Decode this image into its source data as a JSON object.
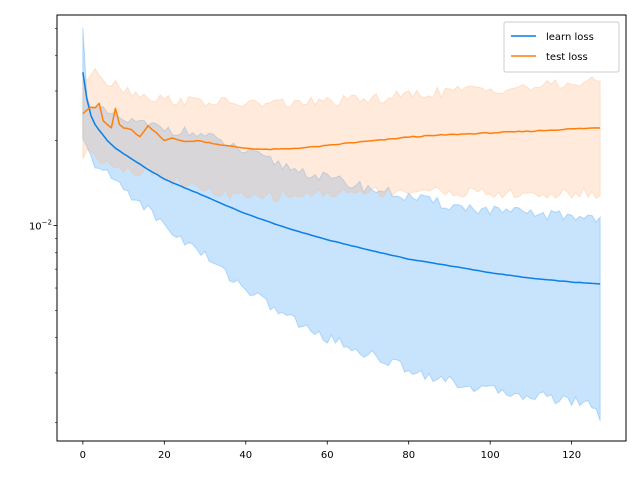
{
  "chart_data": {
    "type": "line",
    "title": "",
    "xlabel": "",
    "ylabel": "",
    "xlim": [
      -6.35,
      133.35
    ],
    "ylim": [
      0.00172,
      0.0558
    ],
    "yscale": "log",
    "grid": false,
    "legend_position": "top-right",
    "x_ticks": [
      0,
      20,
      40,
      60,
      80,
      100,
      120
    ],
    "y_major_ticks": [
      {
        "value": 0.01,
        "base": "10",
        "exponent": "−2"
      }
    ],
    "y_minor_ticks": [
      0.002,
      0.003,
      0.004,
      0.005,
      0.006,
      0.007,
      0.008,
      0.009,
      0.02,
      0.03,
      0.04,
      0.05
    ],
    "x_start": 0,
    "x_end": 127,
    "series": [
      {
        "name": "learn loss",
        "color": "#1f77b4",
        "line_color": "#0a7fe8",
        "band_color": "#4aa3f5",
        "mean_anchors": [
          [
            0,
            0.035
          ],
          [
            1,
            0.028
          ],
          [
            2,
            0.0245
          ],
          [
            3,
            0.0228
          ],
          [
            4,
            0.0218
          ],
          [
            6,
            0.02
          ],
          [
            8,
            0.0188
          ],
          [
            10,
            0.018
          ],
          [
            12,
            0.0172
          ],
          [
            14,
            0.0165
          ],
          [
            16,
            0.0158
          ],
          [
            18,
            0.0152
          ],
          [
            20,
            0.0146
          ],
          [
            25,
            0.0136
          ],
          [
            30,
            0.0127
          ],
          [
            35,
            0.0118
          ],
          [
            40,
            0.011
          ],
          [
            50,
            0.0098
          ],
          [
            60,
            0.0089
          ],
          [
            70,
            0.0082
          ],
          [
            80,
            0.0076
          ],
          [
            90,
            0.0072
          ],
          [
            100,
            0.0068
          ],
          [
            110,
            0.0065
          ],
          [
            120,
            0.0063
          ],
          [
            127,
            0.0062
          ]
        ],
        "upper_anchors": [
          [
            0,
            0.049
          ],
          [
            1,
            0.03
          ],
          [
            2,
            0.0265
          ],
          [
            3,
            0.0258
          ],
          [
            4,
            0.0255
          ],
          [
            6,
            0.025
          ],
          [
            8,
            0.0242
          ],
          [
            10,
            0.0236
          ],
          [
            15,
            0.0228
          ],
          [
            20,
            0.0222
          ],
          [
            30,
            0.0208
          ],
          [
            40,
            0.0182
          ],
          [
            50,
            0.0162
          ],
          [
            60,
            0.0147
          ],
          [
            70,
            0.0136
          ],
          [
            80,
            0.0126
          ],
          [
            90,
            0.0118
          ],
          [
            100,
            0.0113
          ],
          [
            110,
            0.011
          ],
          [
            120,
            0.0108
          ],
          [
            127,
            0.0107
          ]
        ],
        "lower_anchors": [
          [
            0,
            0.02
          ],
          [
            2,
            0.0172
          ],
          [
            4,
            0.016
          ],
          [
            8,
            0.0144
          ],
          [
            12,
            0.0128
          ],
          [
            16,
            0.0114
          ],
          [
            20,
            0.01
          ],
          [
            25,
            0.0088
          ],
          [
            30,
            0.0078
          ],
          [
            35,
            0.0068
          ],
          [
            40,
            0.006
          ],
          [
            45,
            0.0053
          ],
          [
            50,
            0.0048
          ],
          [
            55,
            0.0043
          ],
          [
            60,
            0.004
          ],
          [
            70,
            0.0035
          ],
          [
            80,
            0.0031
          ],
          [
            90,
            0.0028
          ],
          [
            100,
            0.0026
          ],
          [
            110,
            0.0025
          ],
          [
            120,
            0.0024
          ],
          [
            126,
            0.0023
          ],
          [
            127,
            0.002
          ]
        ]
      },
      {
        "name": "test loss",
        "color": "#ff7f0e",
        "line_color": "#ff7f0e",
        "band_color": "#ffbb88",
        "mean_anchors": [
          [
            0,
            0.025
          ],
          [
            1,
            0.0258
          ],
          [
            2,
            0.0263
          ],
          [
            3,
            0.0262
          ],
          [
            4,
            0.027
          ],
          [
            5,
            0.0235
          ],
          [
            6,
            0.0228
          ],
          [
            7,
            0.0222
          ],
          [
            8,
            0.026
          ],
          [
            9,
            0.0228
          ],
          [
            10,
            0.0222
          ],
          [
            12,
            0.0218
          ],
          [
            14,
            0.0206
          ],
          [
            16,
            0.0225
          ],
          [
            18,
            0.0213
          ],
          [
            20,
            0.02
          ],
          [
            22,
            0.0205
          ],
          [
            25,
            0.0198
          ],
          [
            28,
            0.02
          ],
          [
            30,
            0.0198
          ],
          [
            35,
            0.0192
          ],
          [
            40,
            0.0188
          ],
          [
            45,
            0.0186
          ],
          [
            50,
            0.0187
          ],
          [
            55,
            0.0189
          ],
          [
            60,
            0.0192
          ],
          [
            65,
            0.0196
          ],
          [
            70,
            0.0199
          ],
          [
            75,
            0.0202
          ],
          [
            80,
            0.0206
          ],
          [
            90,
            0.021
          ],
          [
            100,
            0.0213
          ],
          [
            110,
            0.0216
          ],
          [
            120,
            0.022
          ],
          [
            127,
            0.0222
          ]
        ],
        "upper_anchors": [
          [
            0,
            0.033
          ],
          [
            2,
            0.034
          ],
          [
            4,
            0.035
          ],
          [
            6,
            0.032
          ],
          [
            8,
            0.033
          ],
          [
            10,
            0.0305
          ],
          [
            15,
            0.029
          ],
          [
            20,
            0.028
          ],
          [
            30,
            0.0275
          ],
          [
            40,
            0.027
          ],
          [
            50,
            0.0272
          ],
          [
            60,
            0.0275
          ],
          [
            70,
            0.028
          ],
          [
            80,
            0.029
          ],
          [
            90,
            0.03
          ],
          [
            100,
            0.0305
          ],
          [
            110,
            0.031
          ],
          [
            120,
            0.0318
          ],
          [
            127,
            0.0325
          ]
        ],
        "lower_anchors": [
          [
            0,
            0.0175
          ],
          [
            2,
            0.0185
          ],
          [
            4,
            0.0175
          ],
          [
            8,
            0.0165
          ],
          [
            12,
            0.0155
          ],
          [
            16,
            0.016
          ],
          [
            20,
            0.0148
          ],
          [
            25,
            0.014
          ],
          [
            30,
            0.0133
          ],
          [
            40,
            0.0125
          ],
          [
            50,
            0.0128
          ],
          [
            60,
            0.013
          ],
          [
            70,
            0.0132
          ],
          [
            80,
            0.0133
          ],
          [
            90,
            0.0132
          ],
          [
            100,
            0.013
          ],
          [
            110,
            0.0128
          ],
          [
            120,
            0.013
          ],
          [
            127,
            0.013
          ]
        ]
      }
    ]
  }
}
